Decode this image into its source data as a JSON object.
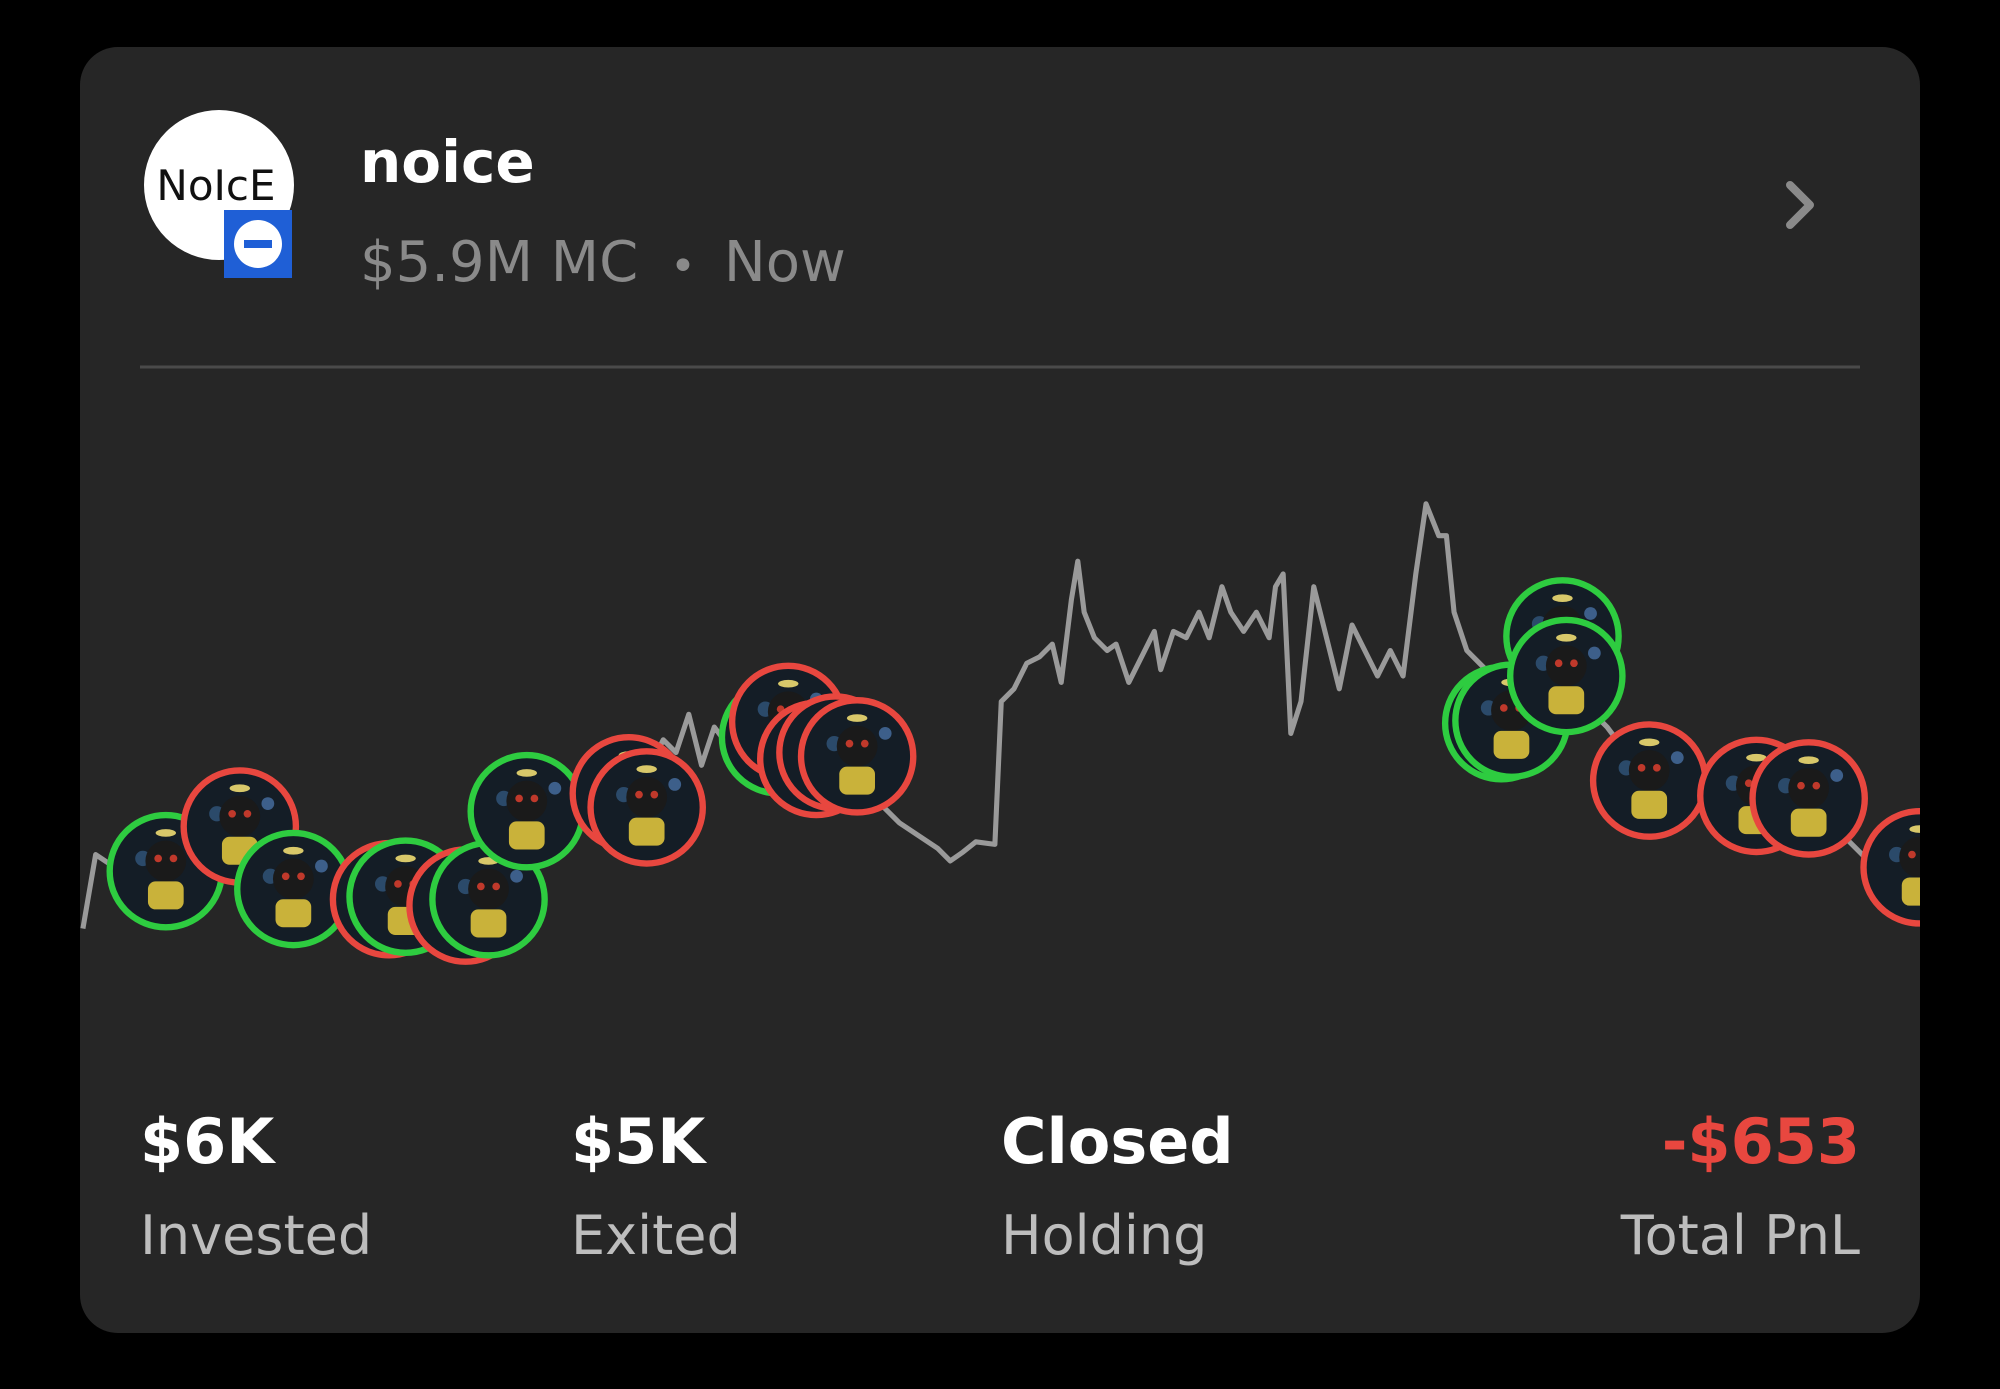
{
  "header": {
    "title": "noice",
    "market_cap": "$5.9M MC",
    "separator": "•",
    "time": "Now",
    "avatar_text": "NoIcE"
  },
  "stats": [
    {
      "value": "$6K",
      "label": "Invested"
    },
    {
      "value": "$5K",
      "label": "Exited"
    },
    {
      "value": "Closed",
      "label": "Holding"
    },
    {
      "value": "-$653",
      "label": "Total PnL"
    }
  ]
}
